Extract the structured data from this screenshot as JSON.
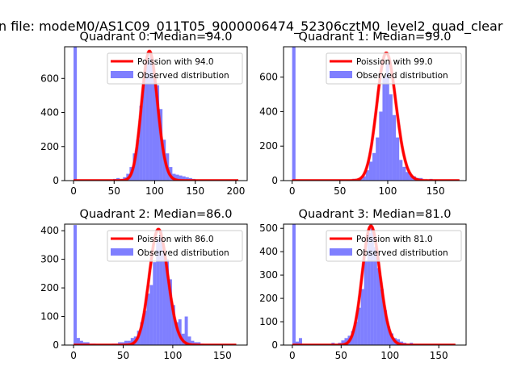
{
  "chart_data": {
    "type": "bar",
    "suptitle": "n file: modeM0/AS1C09_011T05_9000006474_52306cztM0_level2_quad_clear",
    "colors": {
      "hist": "#0000ff",
      "hist_alpha": 0.5,
      "poisson": "#ff0000"
    },
    "legend_placement": "top-right",
    "subplots": [
      {
        "title": "Quadrant 0: Median=94.0",
        "xlim": [
          -11,
          214
        ],
        "ylim": [
          0,
          786
        ],
        "xticks": [
          0,
          50,
          100,
          150,
          200
        ],
        "yticks": [
          0,
          200,
          400,
          600
        ],
        "bin_start": 0,
        "bin_width": 4.06,
        "counts": [
          800,
          0,
          0,
          0,
          0,
          0,
          0,
          0,
          0,
          0,
          0,
          3,
          10,
          15,
          10,
          20,
          40,
          80,
          160,
          240,
          440,
          600,
          700,
          740,
          600,
          560,
          420,
          240,
          160,
          80,
          40,
          35,
          30,
          25,
          20,
          15,
          10,
          5,
          5,
          0,
          0,
          0,
          0,
          0,
          0,
          0,
          0,
          0,
          0,
          0
        ],
        "poisson_mean": 94.0,
        "poisson_peak": 760,
        "curve_xmax": 203,
        "legend": [
          "Poission with 94.0",
          "Observed distribution"
        ]
      },
      {
        "title": "Quadrant 1: Median=99.0",
        "xlim": [
          -9,
          182
        ],
        "ylim": [
          0,
          776
        ],
        "xticks": [
          0,
          50,
          100,
          150
        ],
        "yticks": [
          0,
          200,
          400,
          600
        ],
        "bin_start": 0,
        "bin_width": 3.5,
        "counts": [
          780,
          5,
          2,
          2,
          2,
          2,
          2,
          2,
          2,
          2,
          2,
          2,
          2,
          2,
          2,
          2,
          2,
          2,
          10,
          5,
          10,
          25,
          60,
          110,
          160,
          250,
          400,
          600,
          680,
          500,
          380,
          250,
          120,
          80,
          50,
          30,
          25,
          15,
          15,
          5,
          5,
          10,
          5,
          0,
          0,
          0,
          0,
          0,
          0,
          0
        ],
        "poisson_mean": 99.0,
        "poisson_peak": 740,
        "curve_xmax": 175,
        "legend": [
          "Poission with 99.0",
          "Observed distribution"
        ]
      },
      {
        "title": "Quadrant 2: Median=86.0",
        "xlim": [
          -9,
          175
        ],
        "ylim": [
          0,
          423
        ],
        "xticks": [
          0,
          50,
          100,
          150
        ],
        "yticks": [
          0,
          100,
          200,
          300,
          400
        ],
        "bin_start": 0,
        "bin_width": 3.2,
        "counts": [
          420,
          25,
          15,
          10,
          10,
          5,
          5,
          2,
          2,
          2,
          2,
          2,
          5,
          5,
          10,
          10,
          15,
          15,
          25,
          30,
          50,
          80,
          120,
          180,
          210,
          290,
          370,
          400,
          330,
          300,
          230,
          140,
          80,
          90,
          40,
          100,
          30,
          15,
          10,
          10,
          5,
          0,
          0,
          0,
          0,
          0,
          0,
          0,
          0,
          0
        ],
        "poisson_mean": 86.0,
        "poisson_peak": 405,
        "curve_xmax": 164,
        "legend": [
          "Poission with 86.0",
          "Observed distribution"
        ]
      },
      {
        "title": "Quadrant 3: Median=81.0",
        "xlim": [
          -9,
          178
        ],
        "ylim": [
          0,
          518
        ],
        "xticks": [
          0,
          50,
          100,
          150
        ],
        "yticks": [
          0,
          100,
          200,
          300,
          400,
          500
        ],
        "bin_start": 0,
        "bin_width": 3.34,
        "counts": [
          520,
          15,
          30,
          2,
          2,
          2,
          2,
          2,
          2,
          2,
          2,
          5,
          10,
          5,
          10,
          20,
          30,
          40,
          60,
          100,
          160,
          240,
          360,
          480,
          500,
          420,
          330,
          240,
          150,
          80,
          50,
          30,
          25,
          15,
          10,
          5,
          10,
          5,
          0,
          0,
          0,
          0,
          0,
          0,
          0,
          0,
          0,
          0,
          0,
          0
        ],
        "poisson_mean": 81.0,
        "poisson_peak": 510,
        "curve_xmax": 167,
        "legend": [
          "Poission with 81.0",
          "Observed distribution"
        ]
      }
    ]
  }
}
